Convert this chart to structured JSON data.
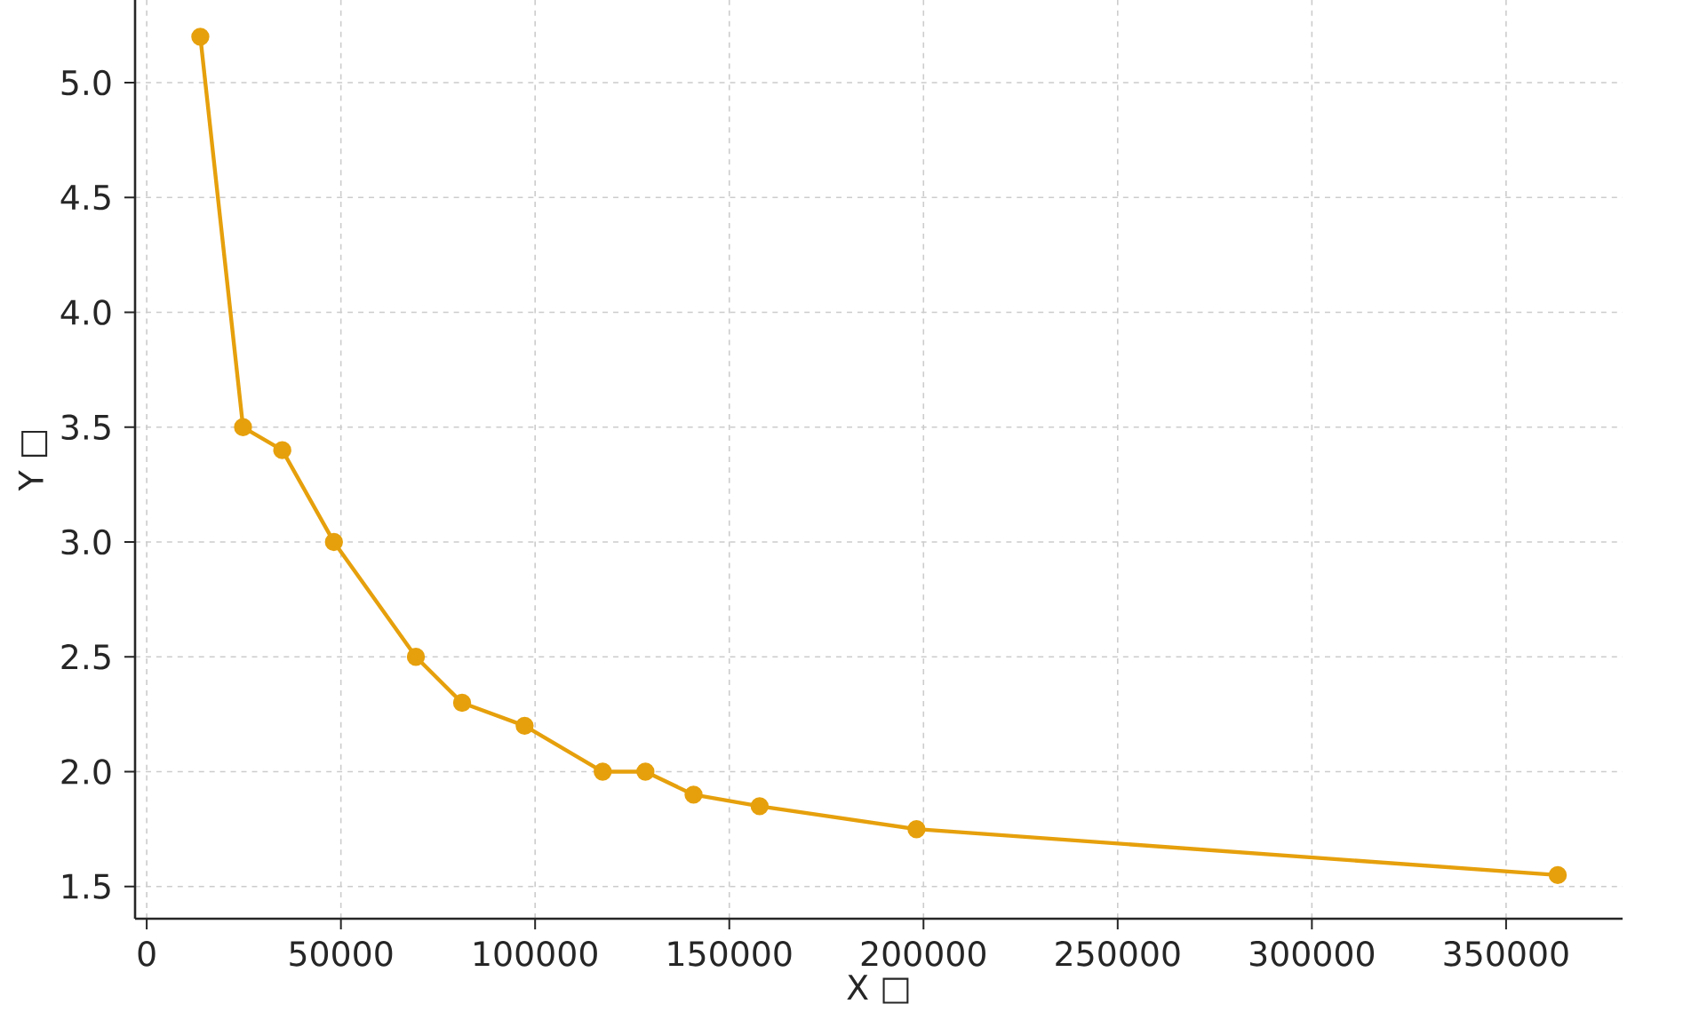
{
  "chart_data": {
    "type": "line",
    "xlabel": "X □",
    "ylabel": "Y □",
    "series": [
      {
        "color": "#e6a00c",
        "x": [
          13800,
          24800,
          34900,
          48200,
          69300,
          81200,
          97300,
          117400,
          128400,
          140800,
          157800,
          198200,
          363300
        ],
        "values": [
          5.2,
          3.5,
          3.4,
          3.0,
          2.5,
          2.3,
          2.2,
          2.0,
          2.0,
          1.9,
          1.85,
          1.75,
          1.55
        ]
      }
    ],
    "xlim": [
      -3000,
      380000
    ],
    "ylim": [
      1.36,
      5.36
    ],
    "xticks": [
      0,
      50000,
      100000,
      150000,
      200000,
      250000,
      300000,
      350000
    ],
    "yticks": [
      1.5,
      {
        "value": 2,
        "label": "2.0"
      },
      2.5,
      {
        "value": 3,
        "label": "3.0"
      },
      3.5,
      {
        "value": 4,
        "label": "4.0"
      },
      4.5,
      {
        "value": 5,
        "label": "5.0"
      }
    ],
    "grid": true,
    "marker": "circle",
    "line_style": "solid"
  }
}
